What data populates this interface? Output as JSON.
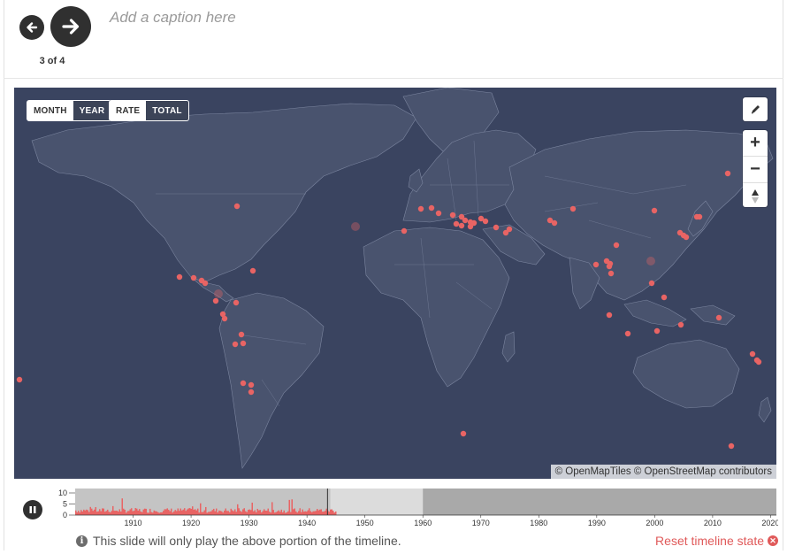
{
  "nav": {
    "prev_icon": "arrow-left-icon",
    "next_icon": "arrow-right-icon",
    "counter": "3 of 4"
  },
  "caption": {
    "placeholder": "Add a caption here"
  },
  "toggles": {
    "period": {
      "options": [
        "MONTH",
        "YEAR"
      ],
      "selected": "YEAR"
    },
    "measure": {
      "options": [
        "RATE",
        "TOTAL"
      ],
      "selected": "TOTAL"
    }
  },
  "map_controls": {
    "edit_icon": "pencil-icon",
    "zoom_in_label": "+",
    "zoom_out_label": "−",
    "compass_icon": "compass-icon"
  },
  "attribution": "© OpenMapTiles © OpenStreetMap contributors",
  "colors": {
    "map_background": "#3a4460",
    "land": "#49536e",
    "borders": "#7c86a0",
    "marker": "#e86464"
  },
  "timeline": {
    "y_ticks": [
      10,
      5,
      0
    ],
    "x_ticks": [
      "1910",
      "1920",
      "1930",
      "1940",
      "1950",
      "1960",
      "1970",
      "1980",
      "1990",
      "2000",
      "2010",
      "2020"
    ],
    "range_start_year": 1900,
    "range_end_year": 2021,
    "played_until_year": 1944,
    "slide_window_end_year": 1960
  },
  "play_icon": "pause-icon",
  "notice": "This slide will only play the above portion of the timeline.",
  "reset_label": "Reset timeline state"
}
